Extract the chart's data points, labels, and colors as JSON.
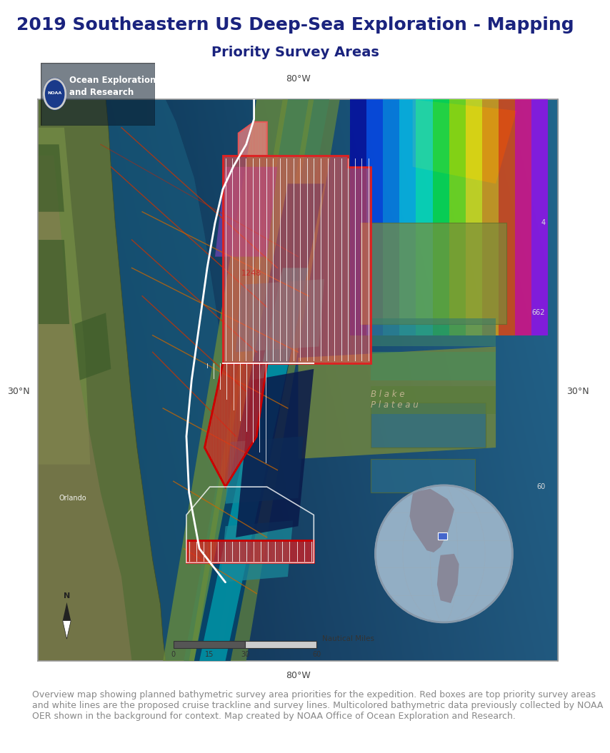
{
  "title_main": "2019 Southeastern US Deep-Sea Exploration - Mapping",
  "title_sub": "Priority Survey Areas",
  "title_color": "#1a237e",
  "title_fontsize": 18,
  "subtitle_fontsize": 14,
  "caption": "Overview map showing planned bathymetric survey area priorities for the expedition. Red boxes are top priority survey areas\nand white lines are the proposed cruise trackline and survey lines. Multicolored bathymetric data previously collected by NOAA\nOER shown in the background for context. Map created by NOAA Office of Ocean Exploration and Research.",
  "caption_color": "#888888",
  "caption_fontsize": 9,
  "map_border_color": "#aaaaaa",
  "label_80W_top": "80°W",
  "label_80W_bottom": "80°W",
  "label_30N_left": "30°N",
  "label_30N_right": "30°N",
  "axis_label_color": "#444444",
  "axis_label_fontsize": 9,
  "oer_text": "Ocean Exploration\nand Research",
  "scale_bar_label": "Nautical Miles",
  "scale_ticks": [
    "0",
    "15",
    "30",
    "60"
  ],
  "compass_label": "N",
  "blake_plateau_label": "B l a k e\nP l a t e a u",
  "blake_label_color": "#c8b896",
  "orlando_label": "Orlando",
  "priority_area_label": "1248",
  "priority_label_color": "#cc2222",
  "fig_width": 8.0,
  "fig_height": 10.35
}
